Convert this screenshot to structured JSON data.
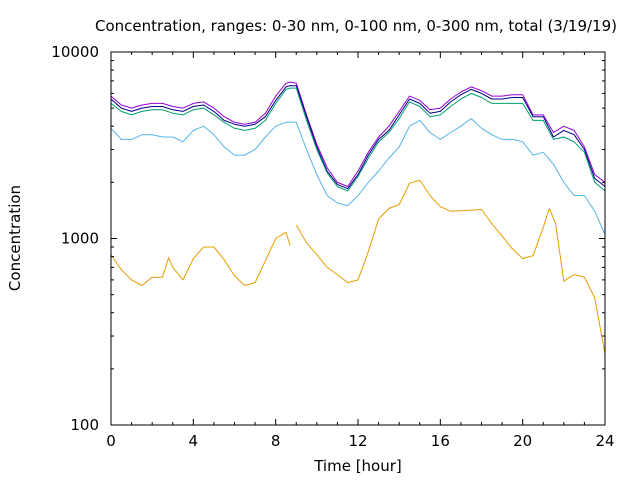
{
  "chart_data": {
    "type": "line",
    "title": "Concentration, ranges: 0-30 nm, 0-100 nm, 0-300 nm, total (3/19/19)",
    "xlabel": "Time [hour]",
    "ylabel": "Concentration",
    "xlim": [
      0,
      24
    ],
    "ylim": [
      100,
      10000
    ],
    "yscale": "log",
    "grid": false,
    "legend": "none",
    "xticks": [
      "0",
      "4",
      "8",
      "12",
      "16",
      "20",
      "24"
    ],
    "yticks": [
      "100",
      "1000",
      "10000"
    ],
    "series": [
      {
        "color": "#9400d3",
        "x": [
          0,
          0.5,
          1,
          1.5,
          2,
          2.5,
          3,
          3.5,
          4,
          4.5,
          5,
          5.5,
          6,
          6.5,
          7,
          7.5,
          8,
          8.5,
          8.7,
          9,
          9.5,
          10,
          10.5,
          11,
          11.5,
          12,
          12.5,
          13,
          13.5,
          14,
          14.5,
          15,
          15.5,
          16,
          16.5,
          17,
          17.5,
          18,
          18.5,
          19,
          19.5,
          20,
          20.5,
          21,
          21.5,
          22,
          22.5,
          23,
          23.5,
          24
        ],
        "y": [
          5800,
          5200,
          5000,
          5200,
          5300,
          5300,
          5100,
          5000,
          5300,
          5400,
          5000,
          4500,
          4200,
          4100,
          4200,
          4700,
          5800,
          6800,
          6900,
          6800,
          4600,
          3200,
          2400,
          2000,
          1900,
          2300,
          2900,
          3500,
          4000,
          4800,
          5800,
          5500,
          4900,
          5000,
          5600,
          6100,
          6500,
          6200,
          5800,
          5800,
          5900,
          5900,
          4600,
          4600,
          3700,
          4000,
          3800,
          3100,
          2200,
          2000
        ]
      },
      {
        "color": "#000080",
        "x": [
          0,
          0.5,
          1,
          1.5,
          2,
          2.5,
          3,
          3.5,
          4,
          4.5,
          5,
          5.5,
          6,
          6.5,
          7,
          7.5,
          8,
          8.5,
          8.7,
          9,
          9.5,
          10,
          10.5,
          11,
          11.5,
          12,
          12.5,
          13,
          13.5,
          14,
          14.5,
          15,
          15.5,
          16,
          16.5,
          17,
          17.5,
          18,
          18.5,
          19,
          19.5,
          20,
          20.5,
          21,
          21.5,
          22,
          22.5,
          23,
          23.5,
          24
        ],
        "y": [
          5600,
          5000,
          4800,
          5000,
          5100,
          5100,
          4900,
          4800,
          5100,
          5200,
          4800,
          4300,
          4100,
          4000,
          4100,
          4500,
          5500,
          6500,
          6600,
          6600,
          4500,
          3100,
          2300,
          1950,
          1850,
          2200,
          2800,
          3400,
          3800,
          4600,
          5600,
          5300,
          4700,
          4800,
          5400,
          5900,
          6300,
          6000,
          5600,
          5600,
          5700,
          5700,
          4500,
          4500,
          3500,
          3800,
          3600,
          3000,
          2100,
          1900
        ]
      },
      {
        "color": "#009e73",
        "x": [
          0,
          0.5,
          1,
          1.5,
          2,
          2.5,
          3,
          3.5,
          4,
          4.5,
          5,
          5.5,
          6,
          6.5,
          7,
          7.5,
          8,
          8.5,
          8.7,
          9,
          9.5,
          10,
          10.5,
          11,
          11.5,
          12,
          12.5,
          13,
          13.5,
          14,
          14.5,
          15,
          15.5,
          16,
          16.5,
          17,
          17.5,
          18,
          18.5,
          19,
          19.5,
          20,
          20.5,
          21,
          21.5,
          22,
          22.5,
          23,
          23.5,
          24
        ],
        "y": [
          5300,
          4800,
          4600,
          4800,
          4900,
          4900,
          4700,
          4600,
          4900,
          5000,
          4600,
          4200,
          3900,
          3800,
          3900,
          4300,
          5300,
          6300,
          6400,
          6400,
          4300,
          3000,
          2250,
          1900,
          1800,
          2150,
          2700,
          3300,
          3700,
          4400,
          5400,
          5100,
          4500,
          4600,
          5100,
          5600,
          6000,
          5700,
          5300,
          5300,
          5300,
          5300,
          4300,
          4300,
          3400,
          3500,
          3300,
          2900,
          2000,
          1800
        ]
      },
      {
        "color": "#56b4e9",
        "x": [
          0,
          0.5,
          1,
          1.5,
          2,
          2.5,
          3,
          3.5,
          4,
          4.5,
          5,
          5.5,
          6,
          6.5,
          7,
          7.5,
          8,
          8.5,
          8.7,
          9,
          9.5,
          10,
          10.5,
          11,
          11.5,
          12,
          12.5,
          13,
          13.5,
          14,
          14.5,
          15,
          15.5,
          16,
          16.5,
          17,
          17.5,
          18,
          18.5,
          19,
          19.5,
          20,
          20.5,
          21,
          21.5,
          22,
          22.5,
          23,
          23.5,
          24
        ],
        "y": [
          3900,
          3400,
          3400,
          3600,
          3600,
          3500,
          3500,
          3300,
          3800,
          4000,
          3600,
          3100,
          2800,
          2800,
          3000,
          3500,
          4000,
          4200,
          4200,
          4200,
          3000,
          2200,
          1700,
          1550,
          1500,
          1700,
          2000,
          2300,
          2700,
          3100,
          4000,
          4300,
          3700,
          3400,
          3700,
          4000,
          4400,
          3900,
          3600,
          3400,
          3400,
          3300,
          2800,
          2900,
          2500,
          2000,
          1700,
          1700,
          1400,
          1050
        ]
      },
      {
        "color": "#e69f00",
        "x": [
          0,
          0.5,
          1,
          1.5,
          2,
          2.5,
          2.8,
          3,
          3.5,
          4,
          4.5,
          5,
          5.5,
          6,
          6.5,
          7,
          7.5,
          8,
          8.5,
          8.7,
          null,
          9,
          9.5,
          10,
          10.5,
          11,
          11.5,
          12,
          12.5,
          13,
          13.5,
          14,
          14.5,
          15,
          15.5,
          16,
          16.5,
          17,
          17.5,
          18,
          18.5,
          19,
          19.5,
          20,
          20.5,
          21,
          21.3,
          21.6,
          22,
          22.5,
          23,
          23.5,
          24
        ],
        "y": [
          820,
          680,
          600,
          560,
          620,
          620,
          790,
          700,
          600,
          780,
          900,
          900,
          770,
          630,
          560,
          580,
          760,
          1000,
          1080,
          920,
          null,
          1180,
          950,
          820,
          700,
          640,
          580,
          600,
          850,
          1270,
          1450,
          1520,
          1980,
          2050,
          1700,
          1480,
          1400,
          1410,
          1420,
          1430,
          1200,
          1030,
          880,
          780,
          810,
          1150,
          1450,
          1200,
          590,
          640,
          620,
          480,
          240
        ]
      }
    ]
  }
}
